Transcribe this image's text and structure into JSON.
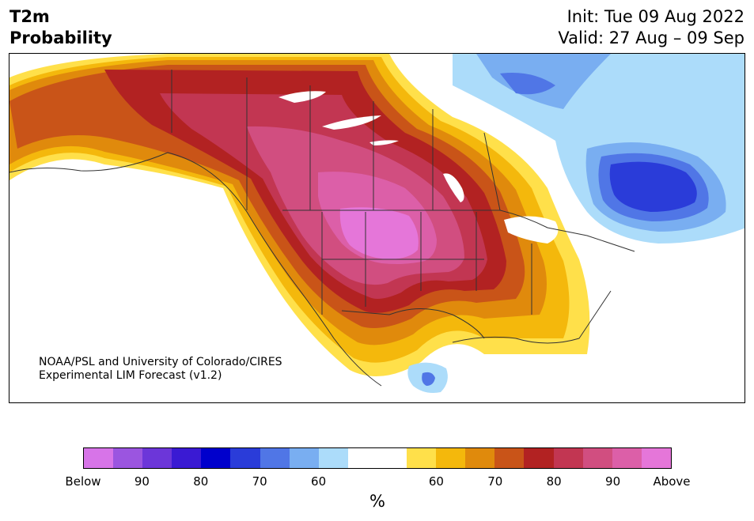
{
  "title": {
    "left_line1": "T2m",
    "left_line2": "Probability",
    "init": "Init: Tue 09 Aug 2022",
    "valid": "Valid: 27 Aug – 09 Sep"
  },
  "credit": {
    "line1": "NOAA/PSL and University of Colorado/CIRES",
    "line2": "Experimental LIM Forecast (v1.2)"
  },
  "colorbar": {
    "colors": [
      "#d774e8",
      "#9b55e0",
      "#6c36d9",
      "#3a1ad3",
      "#0000cc",
      "#2a3cd9",
      "#5076e6",
      "#79aef1",
      "#acdcfa",
      "#ffffff",
      "#ffffff",
      "#ffe04a",
      "#f4b80c",
      "#e08a0c",
      "#c95418",
      "#b22222",
      "#c23652",
      "#d14e80",
      "#dc5fa8",
      "#e576d9"
    ],
    "tick_labels": [
      "Below",
      "90",
      "80",
      "70",
      "60",
      "60",
      "70",
      "80",
      "90",
      "Above"
    ],
    "unit": "%"
  },
  "map": {
    "land_color": "#ffffff",
    "ocean_color": "#ffffff",
    "border_color": "#333333"
  }
}
